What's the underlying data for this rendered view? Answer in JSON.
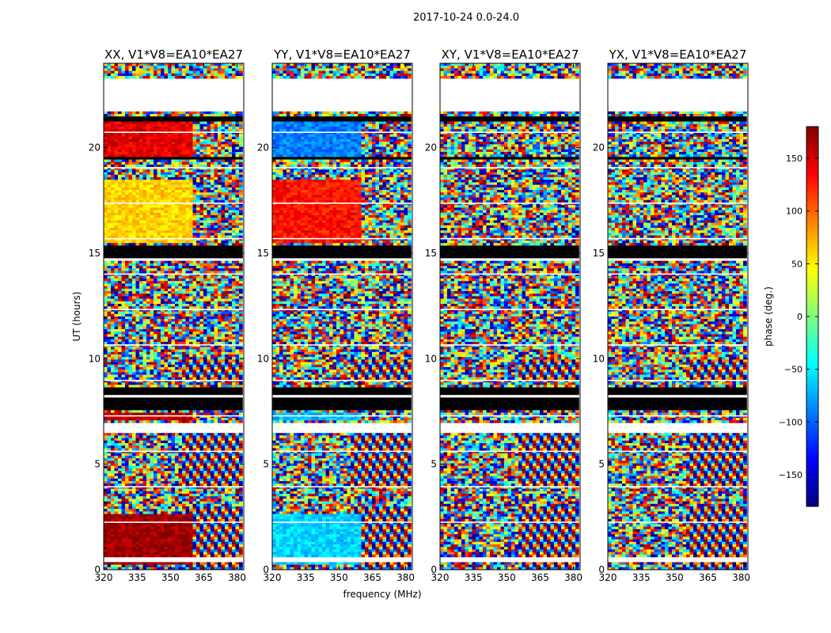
{
  "chart_data": {
    "type": "heatmap",
    "suptitle": "2017-10-24 0.0-24.0",
    "xlabel": "frequency (MHz)",
    "ylabel": "UT (hours)",
    "xlim": [
      320,
      383
    ],
    "ylim": [
      0,
      24
    ],
    "xticks": [
      {
        "value": 320,
        "label": "320"
      },
      {
        "value": 335,
        "label": "335"
      },
      {
        "value": 350,
        "label": "350"
      },
      {
        "value": 365,
        "label": "365"
      },
      {
        "value": 380,
        "label": "380"
      }
    ],
    "yticks": [
      {
        "value": 0,
        "label": "0"
      },
      {
        "value": 5,
        "label": "5"
      },
      {
        "value": 10,
        "label": "10"
      },
      {
        "value": 15,
        "label": "15"
      },
      {
        "value": 20,
        "label": "20"
      }
    ],
    "colorbar": {
      "label": "phase (deg.)",
      "range": [
        -180,
        180
      ],
      "ticks": [
        {
          "value": 150,
          "label": "150"
        },
        {
          "value": 100,
          "label": "100"
        },
        {
          "value": 50,
          "label": "50"
        },
        {
          "value": 0,
          "label": "0"
        },
        {
          "value": -50,
          "label": "−50"
        },
        {
          "value": -100,
          "label": "−100"
        },
        {
          "value": -150,
          "label": "−150"
        }
      ],
      "colormap": "jet",
      "colors": [
        "#00007f",
        "#0000ff",
        "#007fff",
        "#00ffff",
        "#7fff7f",
        "#ffff00",
        "#ff7f00",
        "#ff0000",
        "#7f0000"
      ]
    },
    "panels": [
      {
        "title": "XX, V1*V8=EA10*EA27",
        "coherent_phase": [
          {
            "ut": [
              0.2,
              2.7
            ],
            "deg": 170
          },
          {
            "ut": [
              15.5,
              18.5
            ],
            "deg": 60
          },
          {
            "ut": [
              19.5,
              21.2
            ],
            "deg": 145
          },
          {
            "ut": [
              7.1,
              7.4
            ],
            "deg": 160
          }
        ]
      },
      {
        "title": "YY, V1*V8=EA10*EA27",
        "coherent_phase": [
          {
            "ut": [
              0.2,
              2.7
            ],
            "deg": -60
          },
          {
            "ut": [
              15.5,
              18.5
            ],
            "deg": 130
          },
          {
            "ut": [
              19.5,
              21.2
            ],
            "deg": -90
          },
          {
            "ut": [
              7.1,
              7.4
            ],
            "deg": -70
          }
        ]
      },
      {
        "title": "XY, V1*V8=EA10*EA27",
        "coherent_phase": []
      },
      {
        "title": "YX, V1*V8=EA10*EA27",
        "coherent_phase": []
      }
    ],
    "flagged_bands_ut": [
      [
        7.6,
        8.7
      ],
      [
        14.6,
        15.4
      ],
      [
        19.4,
        19.6
      ],
      [
        21.3,
        21.5
      ]
    ],
    "missing_bands_ut": [
      [
        21.7,
        23.3
      ],
      [
        6.5,
        7.0
      ],
      [
        0.4,
        0.6
      ]
    ]
  }
}
